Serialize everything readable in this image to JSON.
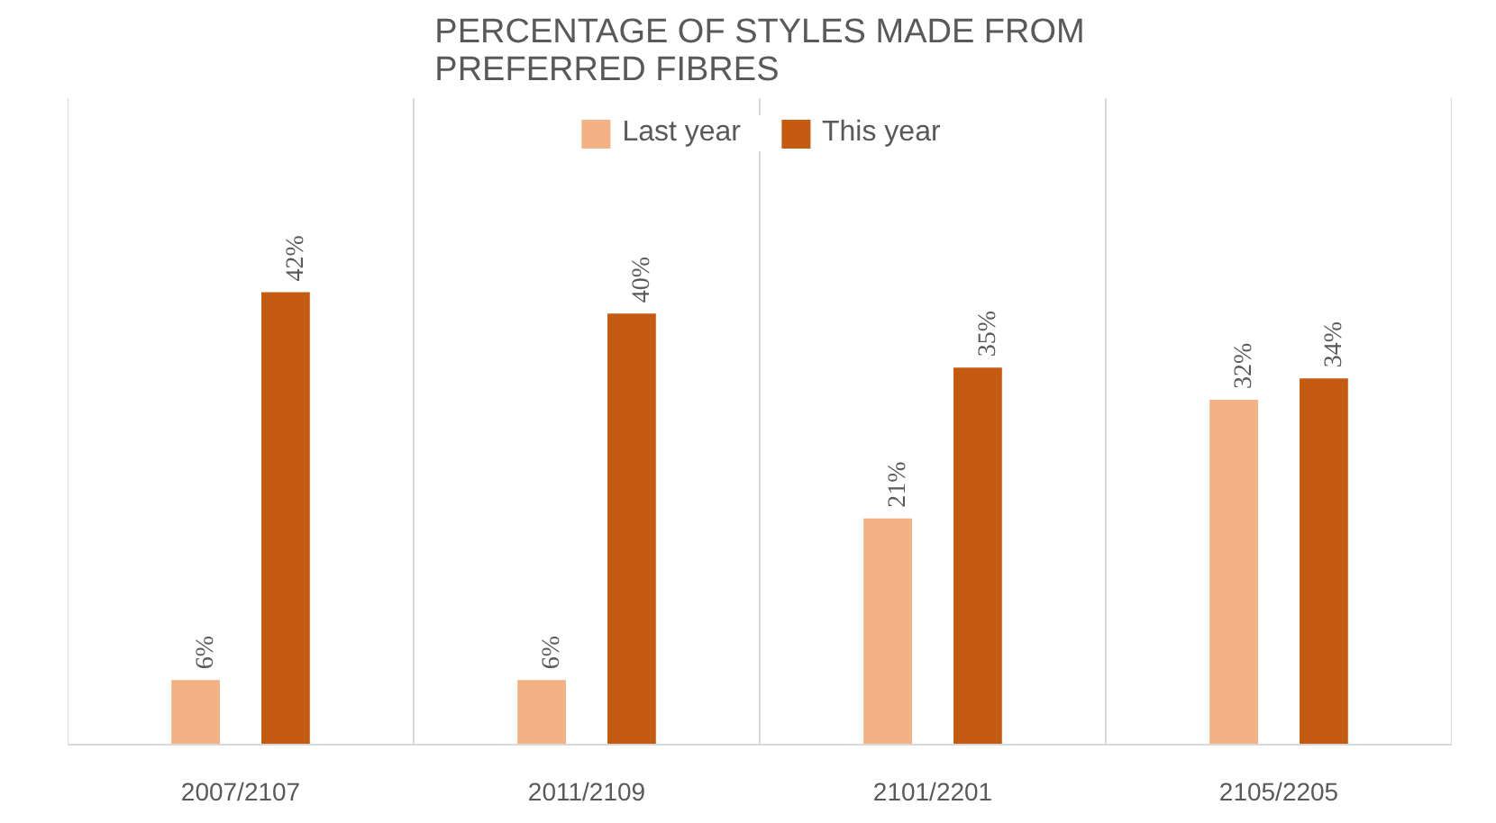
{
  "chart_data": {
    "type": "bar",
    "title": "PERCENTAGE OF STYLES MADE FROM PREFERRED FIBRES",
    "categories": [
      "2007/2107",
      "2011/2109",
      "2101/2201",
      "2105/2205"
    ],
    "series": [
      {
        "name": "Last year",
        "color": "#f4b183",
        "values": [
          6,
          6,
          21,
          32
        ],
        "value_labels": [
          "6%",
          "6%",
          "21%",
          "32%"
        ]
      },
      {
        "name": "This year",
        "color": "#c55a11",
        "values": [
          42,
          40,
          35,
          34
        ],
        "value_labels": [
          "42%",
          "40%",
          "35%",
          "34%"
        ]
      }
    ],
    "ylim": [
      0,
      60
    ],
    "tick_labels": "x",
    "legend": "top",
    "grid": false
  }
}
